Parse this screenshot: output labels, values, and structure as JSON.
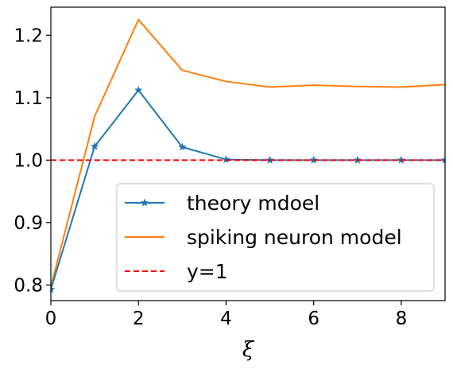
{
  "chart_data": {
    "type": "line",
    "xlabel": "ξ",
    "ylabel": "",
    "title": "",
    "xlim": [
      0,
      9
    ],
    "ylim": [
      0.775,
      1.245
    ],
    "xticks": [
      0,
      2,
      4,
      6,
      8
    ],
    "yticks": [
      0.8,
      0.9,
      1.0,
      1.1,
      1.2
    ],
    "xtick_labels": [
      "0",
      "2",
      "4",
      "6",
      "8"
    ],
    "ytick_labels": [
      "0.8",
      "0.9",
      "1.0",
      "1.1",
      "1.2"
    ],
    "grid": false,
    "legend_position": "lower-right",
    "series": [
      {
        "name": "theory mdoel",
        "color": "#1f77b4",
        "style": "solid",
        "marker": "star",
        "x": [
          0,
          1,
          2,
          3,
          4,
          5,
          6,
          7,
          8,
          9
        ],
        "y": [
          0.793,
          1.022,
          1.112,
          1.021,
          1.001,
          1.0,
          1.0,
          1.0,
          1.0,
          1.0
        ]
      },
      {
        "name": "spiking neuron model",
        "color": "#ff7f0e",
        "style": "solid",
        "marker": "none",
        "x": [
          0,
          1,
          2,
          3,
          4,
          5,
          6,
          7,
          8,
          9
        ],
        "y": [
          0.797,
          1.07,
          1.225,
          1.144,
          1.126,
          1.117,
          1.12,
          1.118,
          1.117,
          1.121
        ]
      },
      {
        "name": "y=1",
        "color": "#ff0000",
        "style": "dashed",
        "marker": "none",
        "x": [
          0,
          9
        ],
        "y": [
          1.0,
          1.0
        ]
      }
    ]
  }
}
